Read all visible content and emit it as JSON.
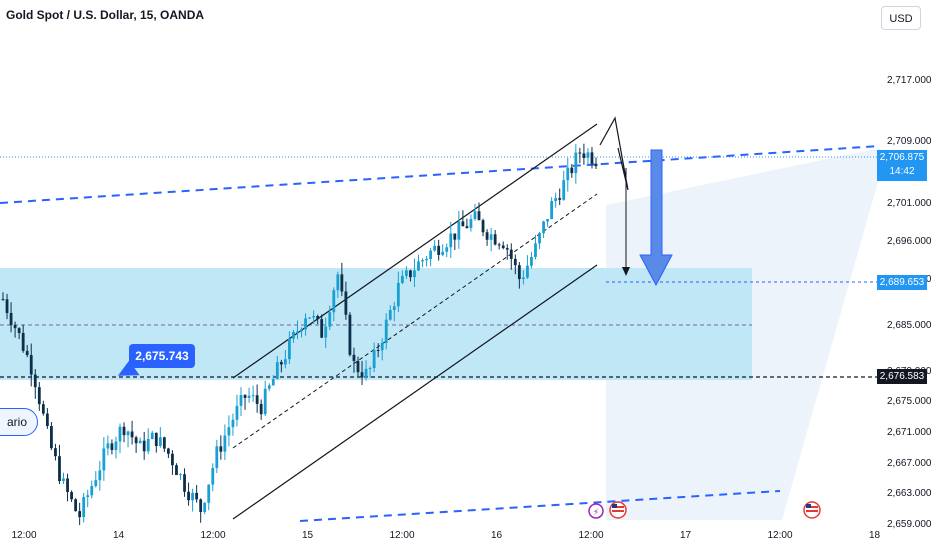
{
  "header": {
    "title": "Gold Spot / U.S. Dollar, 15, OANDA",
    "currency_button": "USD"
  },
  "callout": {
    "label": "2,675.743"
  },
  "scenario_pill": {
    "label": "ario"
  },
  "price_tags": {
    "current": "2,706.875",
    "current_timer": "14:42",
    "target": "2,689.653",
    "support": "2,676.583"
  },
  "colors": {
    "candle": "#1a9fd3",
    "zone": "#bfe7f5",
    "channel_dash": "#2962ff",
    "arrow": "#5a8ae8",
    "lines": "#131722"
  },
  "icons": [
    "lightning-event-icon",
    "us-flag-event-icon",
    "us-flag-event-icon"
  ],
  "chart_data": {
    "type": "candlestick",
    "title": "Gold Spot / U.S. Dollar, 15, OANDA",
    "x_tick_labels": [
      "12:00",
      "14",
      "12:00",
      "15",
      "12:00",
      "16",
      "12:00",
      "17",
      "12:00",
      "18"
    ],
    "y_tick_labels": [
      "2,717.000",
      "2,709.000",
      "2,701.000",
      "2,696.000",
      "2,691.000",
      "2,685.000",
      "2,679.000",
      "2,675.000",
      "2,671.000",
      "2,667.000",
      "2,663.000",
      "2,659.000"
    ],
    "y_ticks": [
      2717,
      2709,
      2701,
      2696,
      2691,
      2685,
      2679,
      2675,
      2671,
      2667,
      2663,
      2659
    ],
    "ylim": [
      2657,
      2725
    ],
    "price_path": [
      2688.5,
      2684.0,
      2679.0,
      2670.0,
      2664.0,
      2660.0,
      2665.0,
      2669.5,
      2672.0,
      2669.0,
      2670.5,
      2668.0,
      2664.0,
      2661.0,
      2668.0,
      2672.5,
      2676.0,
      2674.5,
      2679.0,
      2683.0,
      2687.0,
      2684.0,
      2692.0,
      2680.0,
      2678.5,
      2684.0,
      2690.0,
      2692.5,
      2694.5,
      2696.0,
      2697.5,
      2699.0,
      2697.0,
      2696.0,
      2691.0,
      2695.0,
      2700.5,
      2704.0,
      2708.0,
      2706.875
    ],
    "annotations": {
      "support_level": 2676.583,
      "target_level": 2689.653,
      "current_price": 2706.875,
      "demand_zone": [
        2676.583,
        2691.0
      ],
      "callout_price": 2675.743
    }
  }
}
